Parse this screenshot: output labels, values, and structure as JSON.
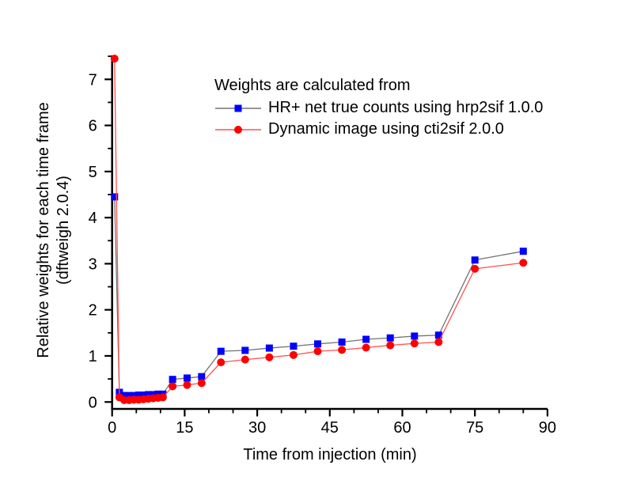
{
  "figure": {
    "background_color": "#ffffff",
    "axis_color": "#000000"
  },
  "chart_data": {
    "type": "line",
    "title": "",
    "xlabel": "Time from injection (min)",
    "ylabel_line1": "Relative weights for each time frame",
    "ylabel_line2": "(dftweigh 2.0.4)",
    "xlim": [
      0,
      90
    ],
    "ylim": [
      -0.15,
      7.52
    ],
    "x_ticks": [
      0,
      15,
      30,
      45,
      60,
      75,
      90
    ],
    "x_minor_step": 5,
    "y_ticks": [
      0,
      1,
      2,
      3,
      4,
      5,
      6,
      7
    ],
    "y_minor_step": 0.5,
    "grid": false,
    "legend_position": "top-left-inside",
    "legend": {
      "header": "Weights are calculated from",
      "entries": [
        {
          "id": "hrplus",
          "label": "HR+ net true counts using hrp2sif 1.0.0"
        },
        {
          "id": "dynamic",
          "label": "Dynamic image using cti2sif 2.0.0"
        }
      ]
    },
    "x": [
      0.5,
      1.5,
      2.5,
      3.5,
      4.5,
      5.5,
      6.5,
      7.5,
      8.5,
      9.5,
      10.5,
      12.5,
      15.5,
      18.5,
      22.5,
      27.5,
      32.5,
      37.5,
      42.5,
      47.5,
      52.5,
      57.5,
      62.5,
      67.5,
      75,
      85
    ],
    "series": [
      {
        "id": "hrplus",
        "name": "HR+ net true counts using hrp2sif 1.0.0",
        "marker": "square",
        "marker_color": "#0000ff",
        "line_color": "#737373",
        "values": [
          4.45,
          0.21,
          0.14,
          0.14,
          0.14,
          0.15,
          0.15,
          0.16,
          0.16,
          0.17,
          0.17,
          0.49,
          0.52,
          0.55,
          1.1,
          1.12,
          1.17,
          1.21,
          1.26,
          1.3,
          1.36,
          1.39,
          1.43,
          1.45,
          3.08,
          3.27
        ]
      },
      {
        "id": "dynamic",
        "name": "Dynamic image using cti2sif 2.0.0",
        "marker": "circle",
        "marker_color": "#ff0000",
        "line_color": "#ff5050",
        "values": [
          7.45,
          0.1,
          0.04,
          0.04,
          0.05,
          0.05,
          0.06,
          0.07,
          0.08,
          0.09,
          0.1,
          0.34,
          0.37,
          0.41,
          0.86,
          0.92,
          0.97,
          1.02,
          1.1,
          1.13,
          1.18,
          1.23,
          1.27,
          1.3,
          2.89,
          3.02
        ]
      }
    ]
  }
}
